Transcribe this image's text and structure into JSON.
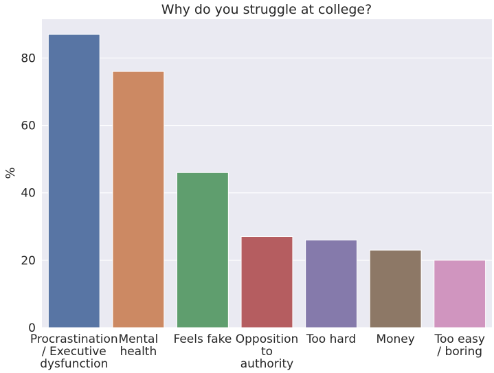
{
  "chart_data": {
    "type": "bar",
    "title": "Why do you struggle at college?",
    "xlabel": "",
    "ylabel": "%",
    "ylim": [
      0,
      91.5
    ],
    "yticks": [
      0,
      20,
      40,
      60,
      80
    ],
    "grid": true,
    "legend": "none",
    "categories": [
      [
        "Procrastination",
        "/ Executive",
        "dysfunction"
      ],
      [
        "Mental",
        "health"
      ],
      [
        "Feels fake"
      ],
      [
        "Opposition",
        "to",
        "authority"
      ],
      [
        "Too hard"
      ],
      [
        "Money"
      ],
      [
        "Too easy",
        "/ boring"
      ]
    ],
    "values": [
      87,
      76,
      46,
      27,
      26,
      23,
      20
    ],
    "colors": [
      "#5875a4",
      "#cc8963",
      "#5f9e6e",
      "#b55d60",
      "#857aab",
      "#8d7866",
      "#d095bf"
    ],
    "background": "#eaeaf2"
  }
}
